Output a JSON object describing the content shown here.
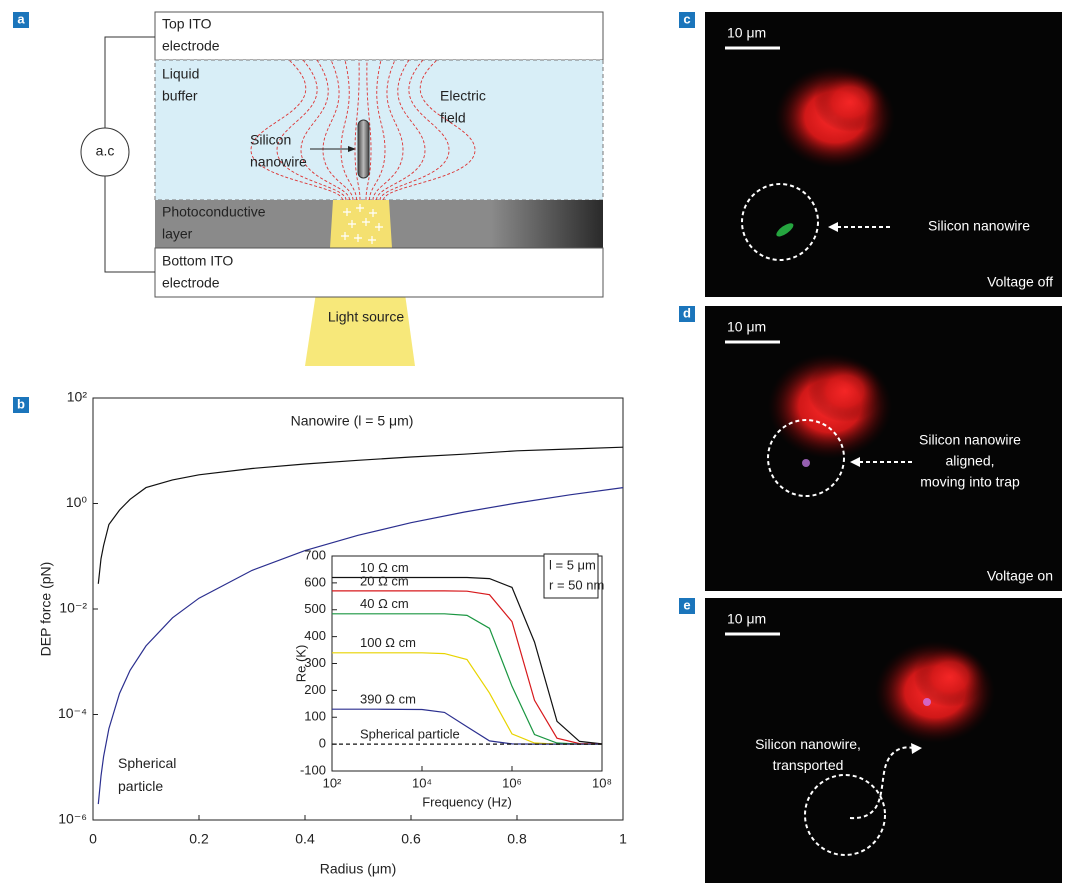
{
  "figure": {
    "panel_labels": [
      "a",
      "b",
      "c",
      "d",
      "e"
    ],
    "diagram": {
      "top_electrode": [
        "Top ITO",
        "electrode"
      ],
      "buffer": [
        "Liquid",
        "buffer"
      ],
      "nanowire": [
        "Silicon",
        "nanowire"
      ],
      "field": [
        "Electric",
        "field"
      ],
      "photoconductive": [
        "Photoconductive",
        "layer"
      ],
      "bottom_electrode": [
        "Bottom ITO",
        "electrode"
      ],
      "light": "Light source",
      "source": "a.c"
    },
    "micrographs": [
      {
        "scale": "10 μm",
        "caption": [
          "Silicon nanowire"
        ],
        "state": "Voltage off"
      },
      {
        "scale": "10 μm",
        "caption": [
          "Silicon nanowire",
          "aligned,",
          "moving into trap"
        ],
        "state": "Voltage on"
      },
      {
        "scale": "10 μm",
        "caption": [
          "Silicon nanowire,",
          "transported"
        ]
      }
    ]
  },
  "chart_data": [
    {
      "type": "line",
      "yscale": "log",
      "xlabel": "Radius (μm)",
      "ylabel": "DEP force (pN)",
      "xlim": [
        0,
        1
      ],
      "xticks": [
        0,
        0.2,
        0.4,
        0.6,
        0.8,
        1
      ],
      "ylim": [
        1e-06,
        100
      ],
      "yticks": [
        {
          "value": 100,
          "label": "10²"
        },
        {
          "value": 1,
          "label": "10⁰"
        },
        {
          "value": 0.01,
          "label": "10⁻²"
        },
        {
          "value": 0.0001,
          "label": "10⁻⁴"
        },
        {
          "value": 1e-06,
          "label": "10⁻⁶"
        }
      ],
      "x": [
        0.01,
        0.015,
        0.02,
        0.03,
        0.05,
        0.07,
        0.1,
        0.15,
        0.2,
        0.3,
        0.4,
        0.5,
        0.6,
        0.7,
        0.8,
        0.9,
        1
      ],
      "series": [
        {
          "name": "Nanowire (l = 5 μm)",
          "color": "#111111",
          "values": [
            0.03,
            0.09,
            0.16,
            0.4,
            0.75,
            1.2,
            2.0,
            2.8,
            3.5,
            4.6,
            5.6,
            6.6,
            7.6,
            8.6,
            10,
            10.8,
            11.7
          ]
        },
        {
          "name": "Spherical particle",
          "color": "#2b2f8f",
          "values": [
            2e-06,
            6.8e-06,
            1.6e-05,
            5.4e-05,
            0.00025,
            0.00069,
            0.002,
            0.0068,
            0.016,
            0.054,
            0.128,
            0.25,
            0.432,
            0.686,
            1.02,
            1.46,
            2
          ]
        }
      ]
    },
    {
      "type": "line",
      "xscale": "log",
      "xlabel": "Frequency (Hz)",
      "ylabel": "Re (K)",
      "annotations": [
        "l = 5 μm",
        "r = 50 nm"
      ],
      "xlim": [
        100,
        100000000
      ],
      "xticks": [
        {
          "value": 100,
          "label": "10²"
        },
        {
          "value": 10000,
          "label": "10⁴"
        },
        {
          "value": 1000000,
          "label": "10⁶"
        },
        {
          "value": 100000000,
          "label": "10⁸"
        }
      ],
      "ylim": [
        -100,
        700
      ],
      "yticks": [
        -100,
        0,
        100,
        200,
        300,
        400,
        500,
        600,
        700
      ],
      "x": [
        100,
        1000,
        10000,
        31623,
        100000,
        316228,
        1000000,
        3162278,
        10000000,
        31622777,
        100000000
      ],
      "series": [
        {
          "name": "10 Ω cm",
          "color": "#111111",
          "values": [
            620,
            620,
            620,
            620,
            620,
            616,
            583,
            380,
            85,
            10,
            1
          ]
        },
        {
          "name": "20 Ω cm",
          "color": "#d7191c",
          "values": [
            570,
            570,
            570,
            570,
            569,
            556,
            456,
            163,
            22,
            2,
            0
          ]
        },
        {
          "name": "40 Ω cm",
          "color": "#1a9641",
          "values": [
            485,
            485,
            485,
            485,
            479,
            431,
            215,
            36,
            4,
            0,
            0
          ]
        },
        {
          "name": "100 Ω cm",
          "color": "#e8d400",
          "values": [
            340,
            340,
            340,
            337,
            315,
            190,
            38,
            4,
            0,
            0,
            0
          ]
        },
        {
          "name": "390 Ω cm",
          "color": "#2b2f8f",
          "values": [
            130,
            130,
            129,
            118,
            65,
            12,
            1,
            0,
            0,
            0,
            0
          ]
        },
        {
          "name": "Spherical particle",
          "color": "#111111",
          "dash": true,
          "values": [
            0,
            0,
            0,
            0,
            0,
            0,
            0,
            0,
            0,
            0,
            0
          ]
        }
      ]
    }
  ]
}
